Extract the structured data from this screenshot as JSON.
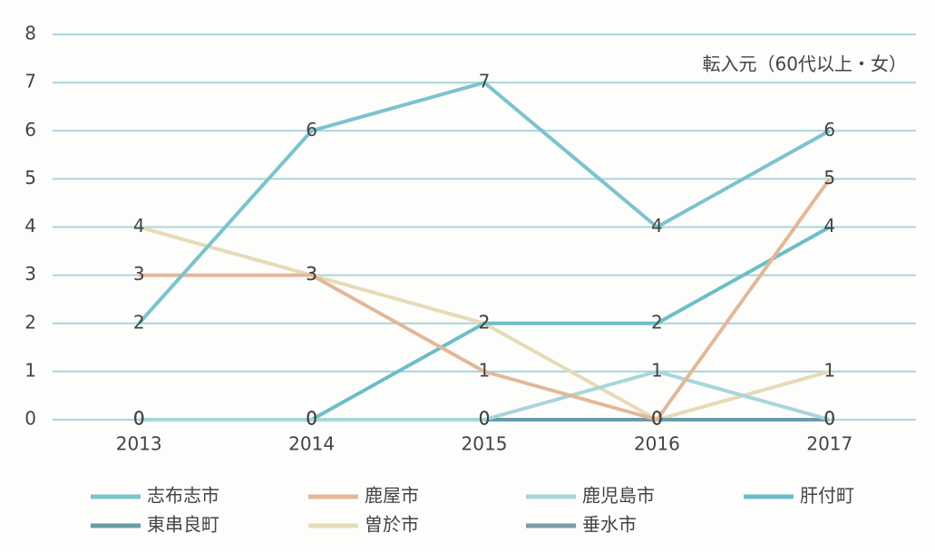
{
  "chart_data": {
    "type": "line",
    "annotation": "転入元（60代以上・女）",
    "categories": [
      "2013",
      "2014",
      "2015",
      "2016",
      "2017"
    ],
    "series": [
      {
        "name": "志布志市",
        "color": "#7cc3cd",
        "values": [
          2,
          6,
          7,
          4,
          6
        ]
      },
      {
        "name": "鹿屋市",
        "color": "#e2b898",
        "values": [
          3,
          3,
          1,
          0,
          5
        ]
      },
      {
        "name": "鹿児島市",
        "color": "#a9d5da",
        "values": [
          0,
          0,
          0,
          1,
          0
        ]
      },
      {
        "name": "肝付町",
        "color": "#6dbdc9",
        "values": [
          0,
          0,
          2,
          2,
          4
        ]
      },
      {
        "name": "東串良町",
        "color": "#6a9aa8",
        "values": [
          0,
          0,
          0,
          0,
          0
        ]
      },
      {
        "name": "曽於市",
        "color": "#e6dbb8",
        "values": [
          4,
          3,
          2,
          0,
          1
        ]
      },
      {
        "name": "垂水市",
        "color": "#7a9ca8",
        "values": [
          0,
          0,
          0,
          0,
          0
        ]
      }
    ],
    "ylim": [
      0,
      8
    ],
    "yticks": [
      0,
      1,
      2,
      3,
      4,
      5,
      6,
      7,
      8
    ],
    "grid": true
  }
}
